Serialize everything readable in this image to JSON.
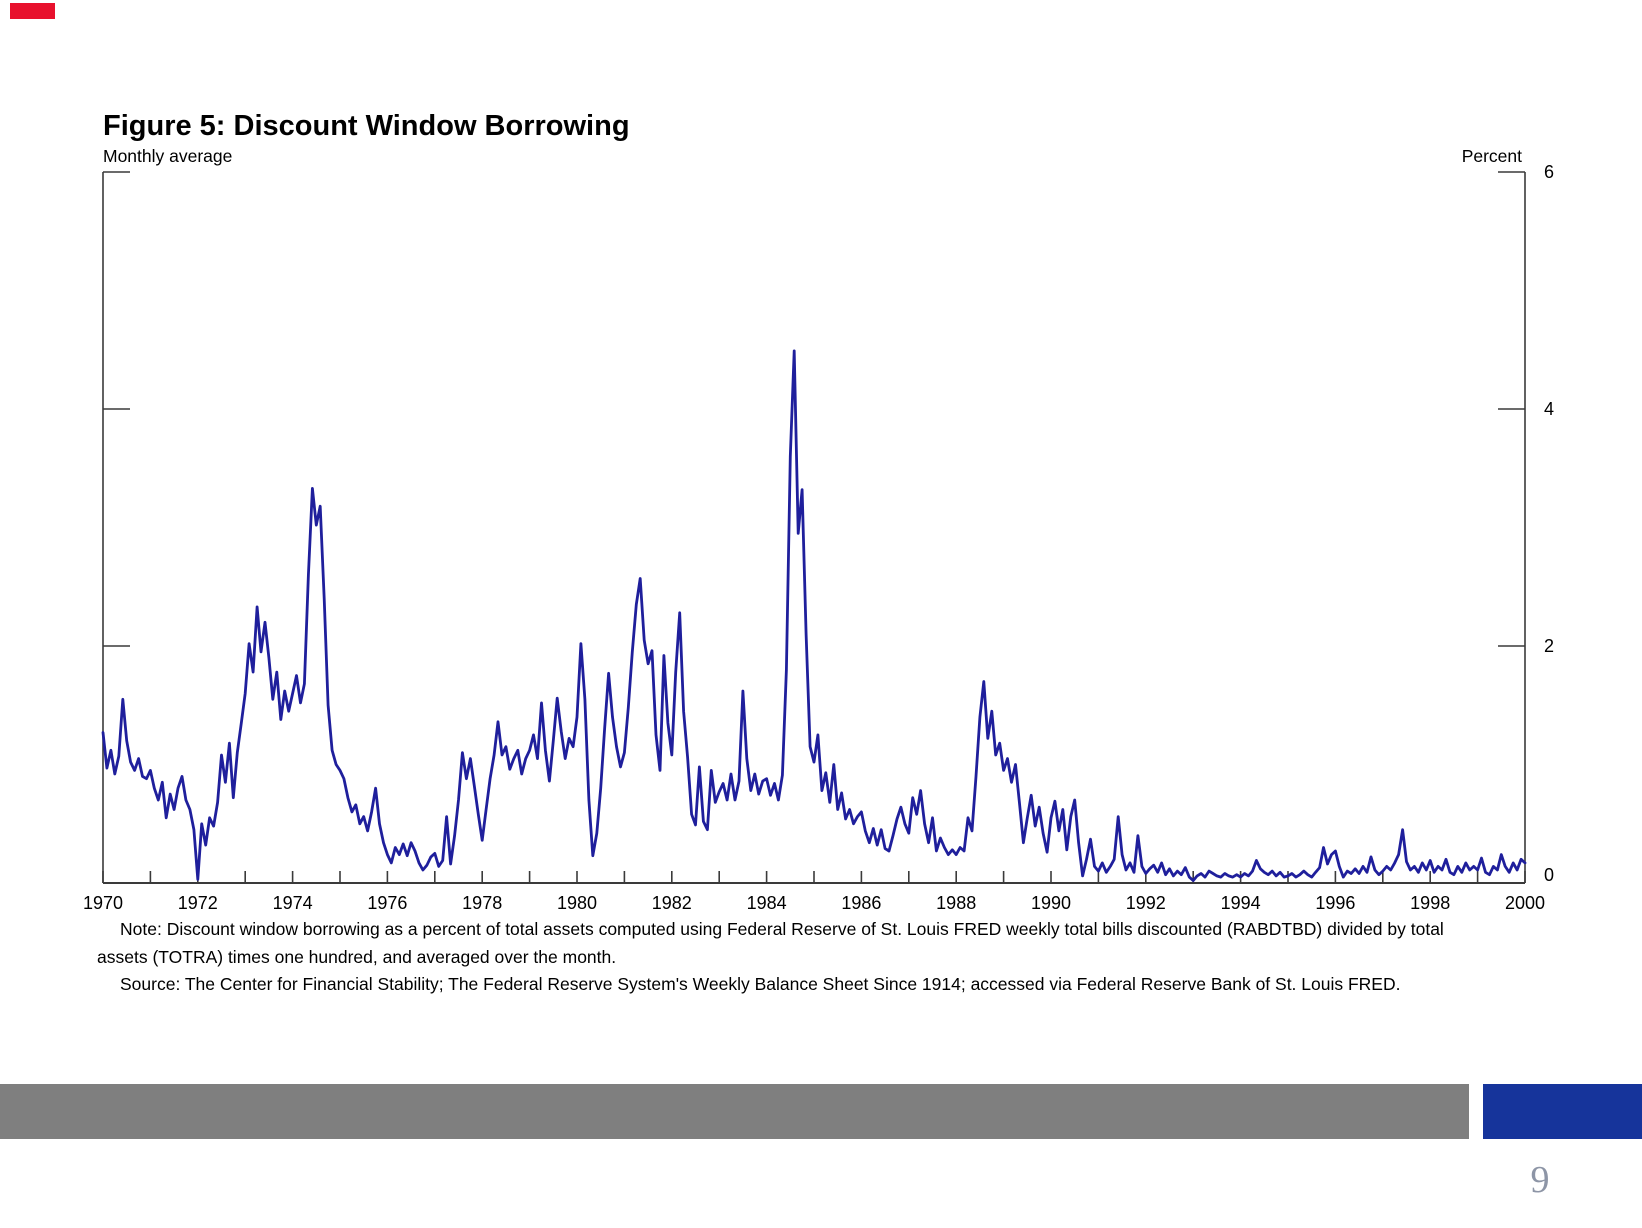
{
  "slide": {
    "accent_bar_color": "#e8112d",
    "footer_gray_color": "#7f7f7f",
    "footer_blue_color": "#16349b",
    "page_number": "9",
    "page_number_color": "#8d95a6"
  },
  "figure": {
    "title": "Figure 5: Discount Window Borrowing",
    "subtitle_left": "Monthly average",
    "axis_label_right": "Percent",
    "note_line1": "Note: Discount window borrowing as a percent of total assets computed using Federal Reserve of St. Louis FRED weekly total bills discounted (RABDTBD) divided by total",
    "note_line2": "assets (TOTRA) times one hundred, and averaged over the month.",
    "source_line": "Source: The Center for Financial Stability; The Federal Reserve System's Weekly Balance Sheet Since 1914; accessed via Federal Reserve Bank of St. Louis FRED."
  },
  "chart_data": {
    "type": "line",
    "title": "Figure 5: Discount Window Borrowing",
    "subtitle": "Monthly average",
    "ylabel": "Percent",
    "series_name": "Discount window borrowing as a percent of total assets, monthly average",
    "xlim": [
      1970,
      2000
    ],
    "ylim": [
      0,
      6
    ],
    "y_tick_values": [
      0,
      2,
      4,
      6
    ],
    "y_tick_labels": [
      "0",
      "2",
      "4",
      "6"
    ],
    "x_minor_tick_every_years": 1,
    "x_label_tick_every_years": 2,
    "x_tick_labels": [
      "1970",
      "1972",
      "1974",
      "1976",
      "1978",
      "1980",
      "1982",
      "1984",
      "1986",
      "1988",
      "1990",
      "1992",
      "1994",
      "1996",
      "1998",
      "2000"
    ],
    "grid": false,
    "legend": "none",
    "line_color": "#1f1f9c",
    "axis_color": "#3a3a3a",
    "x_start_year": 1970.0,
    "x_step_years": 0.08333,
    "values": [
      1.27,
      0.97,
      1.12,
      0.92,
      1.07,
      1.55,
      1.2,
      1.02,
      0.95,
      1.05,
      0.9,
      0.88,
      0.95,
      0.8,
      0.7,
      0.85,
      0.55,
      0.75,
      0.62,
      0.8,
      0.9,
      0.7,
      0.62,
      0.45,
      0.03,
      0.5,
      0.32,
      0.55,
      0.48,
      0.68,
      1.08,
      0.85,
      1.18,
      0.72,
      1.1,
      1.35,
      1.6,
      2.02,
      1.78,
      2.33,
      1.95,
      2.2,
      1.9,
      1.55,
      1.78,
      1.38,
      1.62,
      1.45,
      1.6,
      1.75,
      1.52,
      1.68,
      2.6,
      3.33,
      3.02,
      3.18,
      2.4,
      1.5,
      1.12,
      1.0,
      0.95,
      0.88,
      0.72,
      0.6,
      0.66,
      0.5,
      0.56,
      0.44,
      0.6,
      0.8,
      0.5,
      0.34,
      0.24,
      0.17,
      0.3,
      0.24,
      0.33,
      0.23,
      0.34,
      0.27,
      0.17,
      0.11,
      0.15,
      0.22,
      0.25,
      0.14,
      0.19,
      0.56,
      0.16,
      0.4,
      0.7,
      1.1,
      0.88,
      1.05,
      0.82,
      0.58,
      0.36,
      0.62,
      0.88,
      1.08,
      1.36,
      1.08,
      1.15,
      0.96,
      1.05,
      1.12,
      0.92,
      1.05,
      1.12,
      1.25,
      1.05,
      1.52,
      1.12,
      0.86,
      1.2,
      1.56,
      1.28,
      1.05,
      1.22,
      1.15,
      1.4,
      2.02,
      1.55,
      0.7,
      0.23,
      0.42,
      0.8,
      1.3,
      1.77,
      1.4,
      1.15,
      0.98,
      1.1,
      1.48,
      1.95,
      2.35,
      2.57,
      2.05,
      1.85,
      1.96,
      1.25,
      0.95,
      1.92,
      1.35,
      1.08,
      1.78,
      2.28,
      1.45,
      1.06,
      0.58,
      0.49,
      0.98,
      0.52,
      0.45,
      0.95,
      0.68,
      0.77,
      0.84,
      0.7,
      0.92,
      0.7,
      0.86,
      1.62,
      1.05,
      0.78,
      0.92,
      0.75,
      0.86,
      0.88,
      0.74,
      0.84,
      0.7,
      0.91,
      1.8,
      3.6,
      4.49,
      2.95,
      3.32,
      2.1,
      1.15,
      1.02,
      1.25,
      0.78,
      0.93,
      0.68,
      1.0,
      0.62,
      0.76,
      0.54,
      0.62,
      0.5,
      0.56,
      0.6,
      0.44,
      0.34,
      0.46,
      0.32,
      0.45,
      0.29,
      0.27,
      0.4,
      0.54,
      0.64,
      0.5,
      0.42,
      0.72,
      0.58,
      0.78,
      0.5,
      0.34,
      0.55,
      0.27,
      0.38,
      0.3,
      0.24,
      0.28,
      0.24,
      0.3,
      0.27,
      0.55,
      0.44,
      0.9,
      1.4,
      1.7,
      1.22,
      1.45,
      1.08,
      1.18,
      0.95,
      1.05,
      0.85,
      1.0,
      0.68,
      0.34,
      0.55,
      0.74,
      0.48,
      0.64,
      0.42,
      0.26,
      0.55,
      0.69,
      0.44,
      0.62,
      0.28,
      0.56,
      0.7,
      0.34,
      0.06,
      0.2,
      0.37,
      0.14,
      0.1,
      0.17,
      0.09,
      0.14,
      0.2,
      0.56,
      0.24,
      0.11,
      0.17,
      0.09,
      0.4,
      0.14,
      0.08,
      0.12,
      0.15,
      0.09,
      0.17,
      0.07,
      0.12,
      0.06,
      0.1,
      0.07,
      0.13,
      0.05,
      0.02,
      0.06,
      0.08,
      0.05,
      0.1,
      0.08,
      0.06,
      0.05,
      0.08,
      0.06,
      0.05,
      0.07,
      0.05,
      0.08,
      0.06,
      0.1,
      0.19,
      0.12,
      0.09,
      0.07,
      0.1,
      0.06,
      0.09,
      0.05,
      0.06,
      0.08,
      0.05,
      0.07,
      0.1,
      0.07,
      0.05,
      0.09,
      0.13,
      0.3,
      0.16,
      0.24,
      0.27,
      0.14,
      0.05,
      0.1,
      0.08,
      0.12,
      0.08,
      0.14,
      0.09,
      0.22,
      0.11,
      0.07,
      0.1,
      0.14,
      0.11,
      0.17,
      0.24,
      0.45,
      0.18,
      0.11,
      0.14,
      0.09,
      0.17,
      0.11,
      0.19,
      0.09,
      0.14,
      0.11,
      0.2,
      0.09,
      0.07,
      0.14,
      0.09,
      0.17,
      0.11,
      0.14,
      0.11,
      0.21,
      0.09,
      0.07,
      0.14,
      0.11,
      0.24,
      0.14,
      0.09,
      0.17,
      0.11,
      0.2,
      0.17
    ]
  }
}
